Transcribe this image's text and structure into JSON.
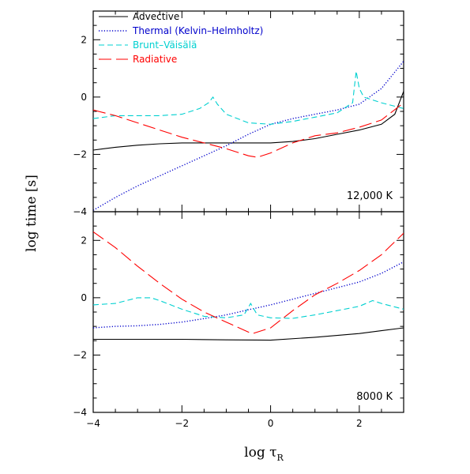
{
  "chart_data": {
    "type": "line",
    "xlabel": "log τ",
    "xlabel_subscript": "R",
    "ylabel": "log time [s]",
    "xlim": [
      -4,
      3
    ],
    "ylim": [
      -4,
      3
    ],
    "x_ticks": [
      -4,
      -2,
      0,
      2
    ],
    "y_ticks": [
      -4,
      -2,
      0,
      2
    ],
    "grid": false,
    "legend": {
      "placement": "top-left",
      "entries": [
        {
          "name": "Advective",
          "color": "#000000",
          "style": "solid"
        },
        {
          "name": "Thermal (Kelvin–Helmholtz)",
          "color": "#0000cc",
          "style": "dotted"
        },
        {
          "name": "Brunt–Väisälä",
          "color": "#00d0d0",
          "style": "dashed"
        },
        {
          "name": "Radiative",
          "color": "#ff0000",
          "style": "longdash"
        }
      ]
    },
    "panels": [
      {
        "label": "12,000 K",
        "series": [
          {
            "name": "Advective",
            "x": [
              -4,
              -3.5,
              -3,
              -2.5,
              -2,
              -1.5,
              -1,
              -0.5,
              0,
              0.5,
              1,
              1.5,
              2,
              2.5,
              2.8,
              3
            ],
            "y": [
              -1.85,
              -1.75,
              -1.68,
              -1.63,
              -1.6,
              -1.6,
              -1.6,
              -1.6,
              -1.6,
              -1.55,
              -1.45,
              -1.3,
              -1.15,
              -0.95,
              -0.6,
              0.2
            ]
          },
          {
            "name": "Thermal (Kelvin–Helmholtz)",
            "x": [
              -4,
              -3.5,
              -3,
              -2.5,
              -2,
              -1.5,
              -1,
              -0.5,
              0,
              0.5,
              1,
              1.5,
              2,
              2.5,
              3
            ],
            "y": [
              -3.95,
              -3.5,
              -3.1,
              -2.75,
              -2.4,
              -2.05,
              -1.7,
              -1.3,
              -0.95,
              -0.75,
              -0.6,
              -0.45,
              -0.25,
              0.3,
              1.25
            ]
          },
          {
            "name": "Brunt–Väisälä",
            "x": [
              -4,
              -3.5,
              -3,
              -2.5,
              -2,
              -1.6,
              -1.4,
              -1.3,
              -1.2,
              -1,
              -0.5,
              0,
              0.5,
              1,
              1.5,
              1.85,
              1.93,
              2.0,
              2.1,
              2.5,
              3
            ],
            "y": [
              -0.75,
              -0.65,
              -0.65,
              -0.65,
              -0.6,
              -0.4,
              -0.2,
              0.0,
              -0.25,
              -0.6,
              -0.9,
              -0.95,
              -0.85,
              -0.7,
              -0.55,
              -0.2,
              0.9,
              0.3,
              0.0,
              -0.2,
              -0.4
            ]
          },
          {
            "name": "Radiative",
            "x": [
              -4,
              -3.5,
              -3,
              -2.5,
              -2,
              -1.5,
              -1,
              -0.5,
              -0.3,
              0,
              0.5,
              1,
              1.5,
              2,
              2.5,
              3
            ],
            "y": [
              -0.45,
              -0.65,
              -0.9,
              -1.15,
              -1.4,
              -1.6,
              -1.8,
              -2.05,
              -2.1,
              -1.95,
              -1.6,
              -1.35,
              -1.25,
              -1.05,
              -0.8,
              -0.2
            ]
          }
        ]
      },
      {
        "label": "8000 K",
        "series": [
          {
            "name": "Advective",
            "x": [
              -4,
              -3,
              -2,
              -1,
              0,
              1,
              2,
              2.5,
              3
            ],
            "y": [
              -1.45,
              -1.45,
              -1.45,
              -1.47,
              -1.48,
              -1.38,
              -1.25,
              -1.15,
              -1.05
            ]
          },
          {
            "name": "Thermal (Kelvin–Helmholtz)",
            "x": [
              -4,
              -3.5,
              -3,
              -2.5,
              -2,
              -1.5,
              -1,
              -0.5,
              0,
              0.5,
              1,
              1.5,
              2,
              2.5,
              3
            ],
            "y": [
              -1.05,
              -1.0,
              -0.98,
              -0.93,
              -0.85,
              -0.73,
              -0.6,
              -0.42,
              -0.25,
              -0.05,
              0.15,
              0.35,
              0.55,
              0.85,
              1.25
            ]
          },
          {
            "name": "Brunt–Väisälä",
            "x": [
              -4,
              -3.5,
              -3,
              -2.7,
              -2.5,
              -2,
              -1.5,
              -1,
              -0.6,
              -0.45,
              -0.3,
              0,
              0.5,
              1,
              1.5,
              2,
              2.3,
              2.5,
              3
            ],
            "y": [
              -0.25,
              -0.2,
              0.0,
              0.0,
              -0.1,
              -0.4,
              -0.65,
              -0.7,
              -0.6,
              -0.2,
              -0.6,
              -0.7,
              -0.72,
              -0.6,
              -0.45,
              -0.3,
              -0.1,
              -0.2,
              -0.4
            ]
          },
          {
            "name": "Radiative",
            "x": [
              -4,
              -3.5,
              -3,
              -2.5,
              -2,
              -1.5,
              -1,
              -0.5,
              -0.4,
              0,
              0.5,
              1,
              1.5,
              2,
              2.5,
              3
            ],
            "y": [
              2.3,
              1.75,
              1.1,
              0.5,
              -0.05,
              -0.5,
              -0.85,
              -1.2,
              -1.25,
              -1.05,
              -0.45,
              0.1,
              0.5,
              0.95,
              1.5,
              2.25
            ]
          }
        ]
      }
    ]
  }
}
